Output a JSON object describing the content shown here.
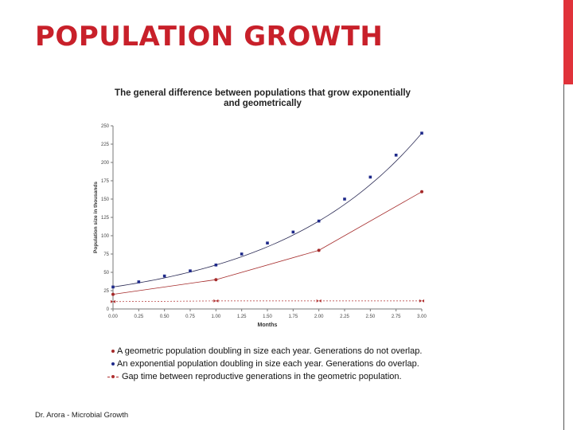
{
  "slide": {
    "title": "POPULATION GROWTH",
    "footer": "Dr. Arora - Microbial Growth",
    "accent_color": "#e0323a",
    "title_color": "#c8202a"
  },
  "chart_data": {
    "type": "line",
    "title_lines": [
      "The general difference between populations that grow exponentially",
      "and geometrically"
    ],
    "xlabel": "Months",
    "ylabel": "Population size in thousands",
    "xlim": [
      0,
      3
    ],
    "ylim": [
      0,
      250
    ],
    "x_ticks": [
      "0.00",
      "0.25",
      "0.50",
      "0.75",
      "1.00",
      "1.25",
      "1.50",
      "1.75",
      "2.00",
      "2.25",
      "2.50",
      "2.75",
      "3.00"
    ],
    "y_ticks": [
      "0",
      "25",
      "50",
      "75",
      "100",
      "125",
      "150",
      "175",
      "200",
      "225",
      "250"
    ],
    "grid": false,
    "legend_position": "bottom",
    "series": [
      {
        "name": "A geometric population doubling in size each year. Generations do not overlap.",
        "color": "#a52a2a",
        "line_style": "solid",
        "x": [
          0,
          1,
          2,
          3
        ],
        "y": [
          20,
          40,
          80,
          160
        ]
      },
      {
        "name": "An exponential population doubling in size each year. Generations do overlap.",
        "color": "#1f2a8a",
        "line_style": "solid",
        "x": [
          0,
          0.25,
          0.5,
          0.75,
          1.0,
          1.25,
          1.5,
          1.75,
          2.0,
          2.25,
          2.5,
          2.75,
          3.0
        ],
        "y": [
          30,
          37,
          45,
          52,
          60,
          75,
          90,
          105,
          120,
          150,
          180,
          210,
          240
        ]
      },
      {
        "name": "Gap time between reproductive generations in the geometric population.",
        "color": "#b03030",
        "line_style": "dashed",
        "x": [
          0,
          1,
          2,
          3
        ],
        "y": [
          10,
          11,
          11,
          11
        ]
      }
    ]
  }
}
